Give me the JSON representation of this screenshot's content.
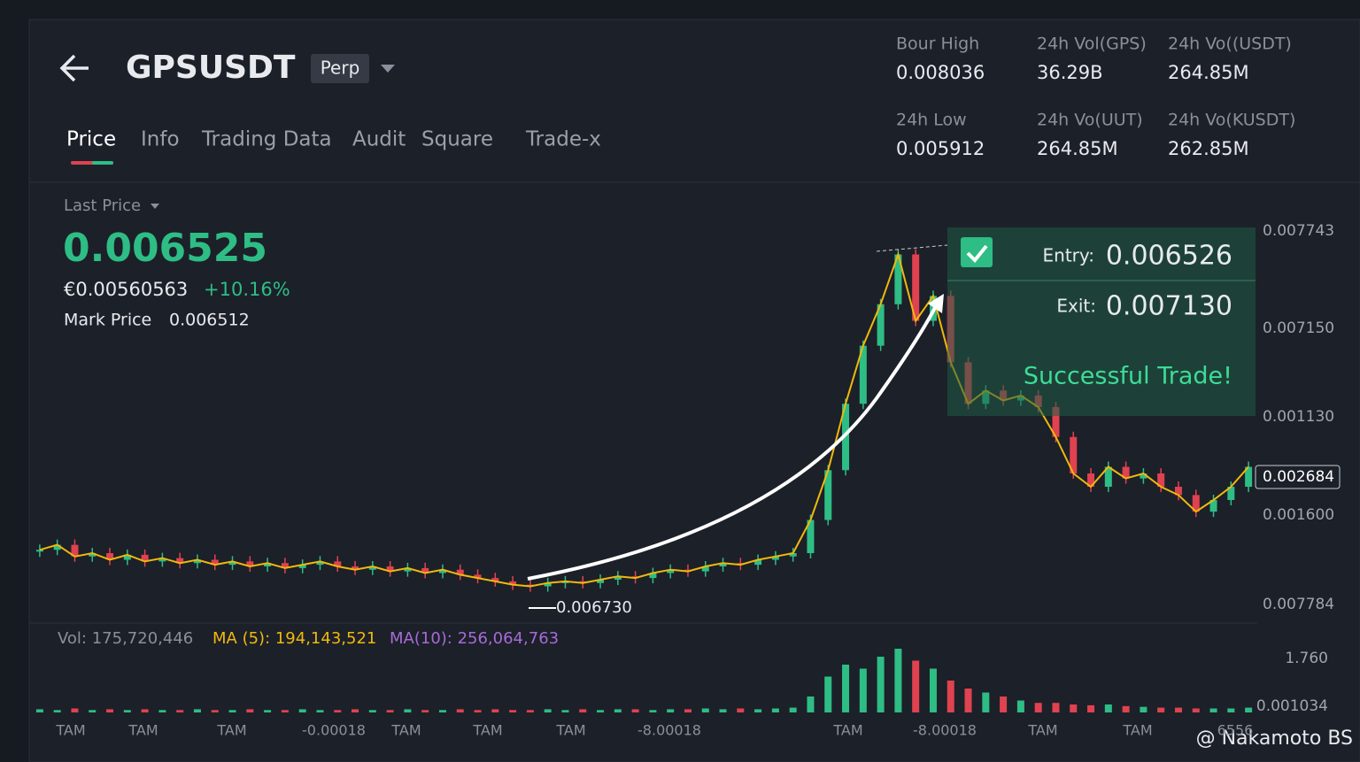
{
  "header": {
    "symbol": "GPSUSDT",
    "badge": "Perp"
  },
  "stats": [
    {
      "label": "Bour High",
      "value": "0.008036"
    },
    {
      "label": "24h Vol(GPS)",
      "value": "36.29B"
    },
    {
      "label": "24h Vo((USDT)",
      "value": "264.85M"
    },
    {
      "label": "24h Low",
      "value": "0.005912"
    },
    {
      "label": "24h Vo(UUT)",
      "value": "264.85M"
    },
    {
      "label": "24h Vo(KUSDT)",
      "value": "262.85M"
    }
  ],
  "tabs": [
    "Price",
    "Info",
    "Trading Data",
    "Audit",
    "Square",
    "Trade-x"
  ],
  "price_panel": {
    "label": "Last Price",
    "last_price": "0.006525",
    "fiat": "€0.00560563",
    "change": "+10.16%",
    "mark_label": "Mark Price",
    "mark_price": "0.006512"
  },
  "trade_card": {
    "entry_label": "Entry:",
    "entry": "0.006526",
    "exit_label": "Exit:",
    "exit": "0.007130",
    "message": "Successful Trade!"
  },
  "annotation": "0.006730",
  "chart_data": {
    "type": "candlestick",
    "ylim": [
      0.0058,
      0.0082
    ],
    "price_axis_labels": [
      "0.007743",
      "0.007150",
      "0.001130",
      "0.002684",
      "0.001600",
      "0.007784"
    ],
    "closes": [
      0.00622,
      0.00625,
      0.00618,
      0.0062,
      0.00616,
      0.00619,
      0.00615,
      0.00617,
      0.00614,
      0.00616,
      0.00613,
      0.00615,
      0.00612,
      0.00614,
      0.00611,
      0.00613,
      0.00615,
      0.00612,
      0.0061,
      0.00612,
      0.00609,
      0.00611,
      0.00608,
      0.0061,
      0.00607,
      0.00605,
      0.00603,
      0.00601,
      0.006,
      0.00602,
      0.00603,
      0.00602,
      0.00604,
      0.00606,
      0.00605,
      0.00608,
      0.0061,
      0.00609,
      0.00612,
      0.00614,
      0.00613,
      0.00616,
      0.00618,
      0.0062,
      0.0064,
      0.0067,
      0.0071,
      0.00745,
      0.0077,
      0.008,
      0.0076,
      0.00775,
      0.00735,
      0.0071,
      0.00718,
      0.00712,
      0.00715,
      0.00708,
      0.0069,
      0.00668,
      0.0066,
      0.00672,
      0.00665,
      0.00668,
      0.0066,
      0.00655,
      0.00645,
      0.00652,
      0.0066,
      0.00672
    ],
    "volume_label": "Vol: 175,720,446",
    "ma5_label": "MA (5): 194,143,521",
    "ma10_label": "MA(10): 256,064,763",
    "volume_axis_labels": [
      "1.760",
      "0.001034"
    ],
    "vlim": [
      0,
      100
    ],
    "volumes": [
      4,
      3,
      5,
      3,
      4,
      3,
      4,
      3,
      3,
      4,
      3,
      3,
      4,
      3,
      3,
      4,
      3,
      3,
      4,
      3,
      3,
      4,
      3,
      3,
      4,
      3,
      4,
      3,
      3,
      4,
      3,
      4,
      3,
      4,
      4,
      3,
      4,
      4,
      5,
      4,
      5,
      4,
      5,
      6,
      20,
      45,
      60,
      55,
      70,
      80,
      65,
      55,
      40,
      30,
      25,
      20,
      15,
      12,
      12,
      10,
      9,
      10,
      8,
      7,
      6,
      6,
      5,
      5,
      5,
      6
    ],
    "x_labels": [
      "TAM",
      "TAM",
      "TAM",
      "-0.00018",
      "TAM",
      "TAM",
      "TAM",
      "-8.00018",
      "TAM",
      "-8.00018",
      "TAM",
      "TAM",
      "6556"
    ]
  },
  "watermark": "@ Nakamoto BS"
}
